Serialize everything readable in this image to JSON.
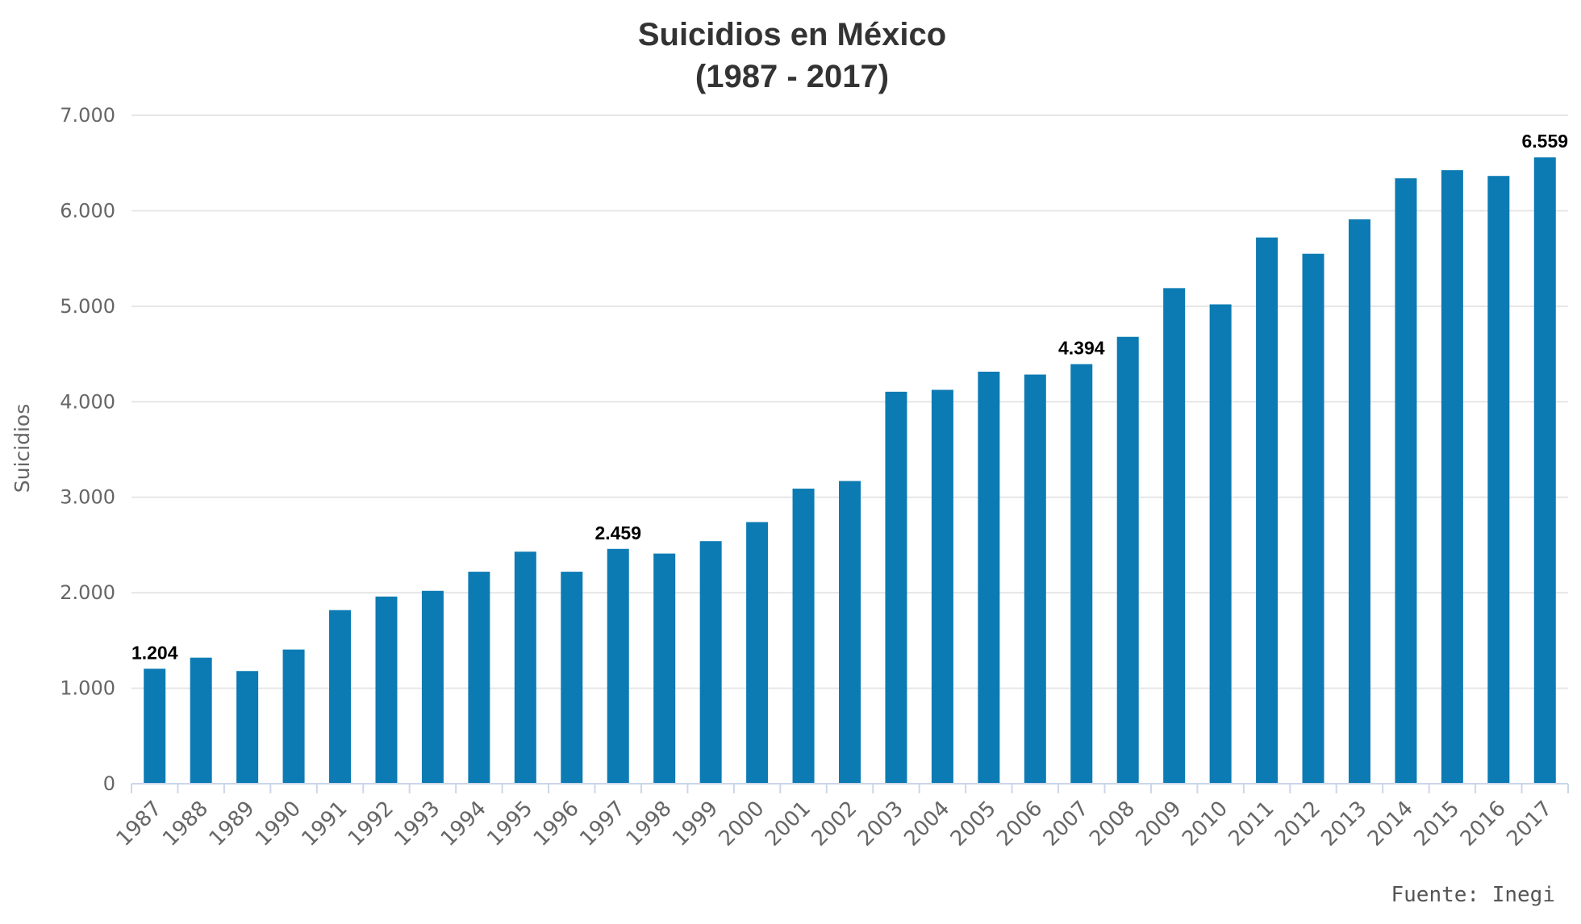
{
  "chart_data": {
    "type": "bar",
    "title": "Suicidios en México",
    "subtitle": "(1987 - 2017)",
    "ylabel": "Suicidios",
    "xlabel": "",
    "source": "Fuente: Inegi",
    "ylim": [
      0,
      7000
    ],
    "yticks": [
      0,
      1000,
      2000,
      3000,
      4000,
      5000,
      6000,
      7000
    ],
    "ytick_labels": [
      "0",
      "1.000",
      "2.000",
      "3.000",
      "4.000",
      "5.000",
      "6.000",
      "7.000"
    ],
    "grid": true,
    "bar_color": "#0c7bb3",
    "categories": [
      "1987",
      "1988",
      "1989",
      "1990",
      "1991",
      "1992",
      "1993",
      "1994",
      "1995",
      "1996",
      "1997",
      "1998",
      "1999",
      "2000",
      "2001",
      "2002",
      "2003",
      "2004",
      "2005",
      "2006",
      "2007",
      "2008",
      "2009",
      "2010",
      "2011",
      "2012",
      "2013",
      "2014",
      "2015",
      "2016",
      "2017"
    ],
    "values": [
      1204,
      1320,
      1180,
      1405,
      1818,
      1960,
      2020,
      2220,
      2430,
      2220,
      2459,
      2410,
      2540,
      2740,
      3090,
      3170,
      4105,
      4125,
      4315,
      4285,
      4394,
      4680,
      5190,
      5020,
      5720,
      5550,
      5910,
      6340,
      6425,
      6365,
      6559
    ],
    "data_labels": [
      {
        "category": "1987",
        "text": "1.204"
      },
      {
        "category": "1997",
        "text": "2.459"
      },
      {
        "category": "2007",
        "text": "4.394"
      },
      {
        "category": "2017",
        "text": "6.559"
      }
    ]
  }
}
